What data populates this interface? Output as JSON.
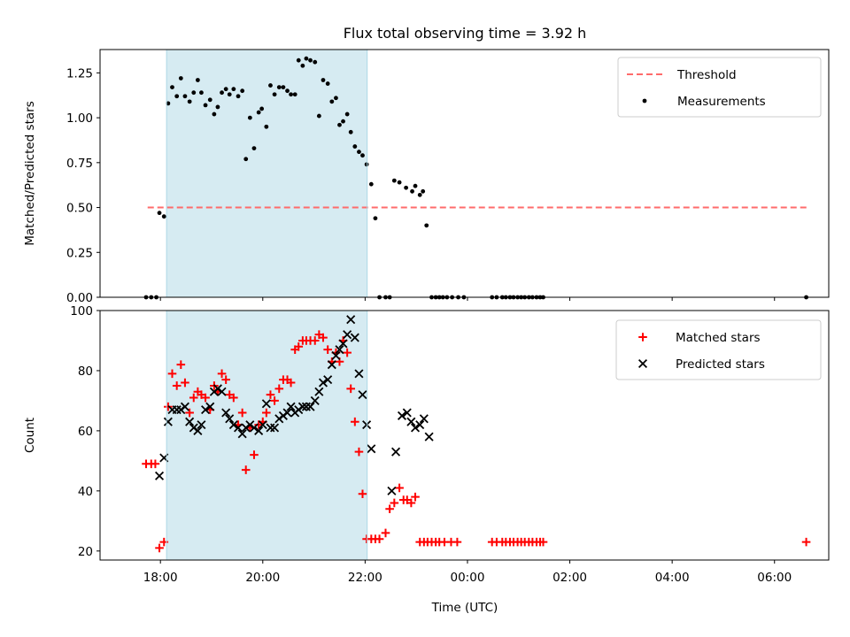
{
  "figure": {
    "title": "Flux total observing time = 3.92 h",
    "xlabel": "Time (UTC)",
    "x_tick_labels": [
      "18:00",
      "20:00",
      "22:00",
      "00:00",
      "02:00",
      "04:00",
      "06:00"
    ],
    "x_tick_hours": [
      18,
      20,
      22,
      24,
      26,
      28,
      30
    ],
    "x_range_hours": [
      16.82,
      31.06
    ],
    "shaded_interval_hours": [
      18.12,
      22.04
    ],
    "shade_color": "#add8e6"
  },
  "chart_data": [
    {
      "type": "scatter",
      "ylabel": "Matched/Predicted stars",
      "ylim": [
        0,
        1.38
      ],
      "y_ticks": [
        0.0,
        0.25,
        0.5,
        0.75,
        1.0,
        1.25
      ],
      "y_tick_labels": [
        "0.00",
        "0.25",
        "0.50",
        "0.75",
        "1.00",
        "1.25"
      ],
      "legend_position": "top-right",
      "threshold": {
        "name": "Threshold",
        "y": 0.5,
        "x_range": [
          17.75,
          30.65
        ],
        "color": "#ff6b6b",
        "style": "dashed"
      },
      "series": [
        {
          "name": "Measurements",
          "marker": "dot",
          "color": "#000000",
          "points": [
            [
              17.72,
              0
            ],
            [
              17.82,
              0
            ],
            [
              17.92,
              0
            ],
            [
              17.98,
              0.47
            ],
            [
              18.07,
              0.45
            ],
            [
              18.15,
              1.08
            ],
            [
              18.23,
              1.17
            ],
            [
              18.32,
              1.12
            ],
            [
              18.4,
              1.22
            ],
            [
              18.48,
              1.12
            ],
            [
              18.57,
              1.09
            ],
            [
              18.65,
              1.14
            ],
            [
              18.73,
              1.21
            ],
            [
              18.8,
              1.14
            ],
            [
              18.88,
              1.07
            ],
            [
              18.97,
              1.1
            ],
            [
              19.05,
              1.02
            ],
            [
              19.12,
              1.06
            ],
            [
              19.2,
              1.14
            ],
            [
              19.28,
              1.16
            ],
            [
              19.35,
              1.13
            ],
            [
              19.43,
              1.16
            ],
            [
              19.52,
              1.12
            ],
            [
              19.6,
              1.15
            ],
            [
              19.67,
              0.77
            ],
            [
              19.75,
              1.0
            ],
            [
              19.83,
              0.83
            ],
            [
              19.92,
              1.03
            ],
            [
              19.98,
              1.05
            ],
            [
              20.07,
              0.95
            ],
            [
              20.15,
              1.18
            ],
            [
              20.23,
              1.13
            ],
            [
              20.32,
              1.17
            ],
            [
              20.4,
              1.17
            ],
            [
              20.48,
              1.15
            ],
            [
              20.55,
              1.13
            ],
            [
              20.63,
              1.13
            ],
            [
              20.7,
              1.32
            ],
            [
              20.78,
              1.29
            ],
            [
              20.85,
              1.33
            ],
            [
              20.93,
              1.32
            ],
            [
              21.02,
              1.31
            ],
            [
              21.1,
              1.01
            ],
            [
              21.18,
              1.21
            ],
            [
              21.27,
              1.19
            ],
            [
              21.35,
              1.09
            ],
            [
              21.43,
              1.11
            ],
            [
              21.5,
              0.96
            ],
            [
              21.57,
              0.98
            ],
            [
              21.65,
              1.02
            ],
            [
              21.72,
              0.92
            ],
            [
              21.8,
              0.84
            ],
            [
              21.88,
              0.81
            ],
            [
              21.95,
              0.79
            ],
            [
              22.03,
              0.74
            ],
            [
              22.12,
              0.63
            ],
            [
              22.2,
              0.44
            ],
            [
              22.28,
              0
            ],
            [
              22.4,
              0
            ],
            [
              22.48,
              0
            ],
            [
              22.57,
              0.65
            ],
            [
              22.67,
              0.64
            ],
            [
              22.8,
              0.61
            ],
            [
              22.92,
              0.59
            ],
            [
              22.98,
              0.62
            ],
            [
              23.07,
              0.57
            ],
            [
              23.13,
              0.59
            ],
            [
              23.2,
              0.4
            ],
            [
              23.3,
              0
            ],
            [
              23.38,
              0
            ],
            [
              23.45,
              0
            ],
            [
              23.52,
              0
            ],
            [
              23.6,
              0
            ],
            [
              23.7,
              0
            ],
            [
              23.82,
              0
            ],
            [
              23.93,
              0
            ],
            [
              24.48,
              0
            ],
            [
              24.57,
              0
            ],
            [
              24.68,
              0
            ],
            [
              24.75,
              0
            ],
            [
              24.83,
              0
            ],
            [
              24.9,
              0
            ],
            [
              24.98,
              0
            ],
            [
              25.05,
              0
            ],
            [
              25.12,
              0
            ],
            [
              25.2,
              0
            ],
            [
              25.27,
              0
            ],
            [
              25.35,
              0
            ],
            [
              25.42,
              0
            ],
            [
              25.48,
              0
            ],
            [
              30.62,
              0
            ]
          ]
        }
      ]
    },
    {
      "type": "scatter",
      "ylabel": "Count",
      "ylim": [
        17,
        100
      ],
      "y_ticks": [
        20,
        40,
        60,
        80,
        100
      ],
      "y_tick_labels": [
        "20",
        "40",
        "60",
        "80",
        "100"
      ],
      "legend_position": "top-right",
      "series": [
        {
          "name": "Matched stars",
          "marker": "plus",
          "color": "#ff0000",
          "points": [
            [
              17.72,
              49
            ],
            [
              17.82,
              49
            ],
            [
              17.9,
              49
            ],
            [
              17.98,
              21
            ],
            [
              18.07,
              23
            ],
            [
              18.15,
              68
            ],
            [
              18.23,
              79
            ],
            [
              18.32,
              75
            ],
            [
              18.4,
              82
            ],
            [
              18.48,
              76
            ],
            [
              18.57,
              66
            ],
            [
              18.65,
              71
            ],
            [
              18.73,
              73
            ],
            [
              18.8,
              72
            ],
            [
              18.88,
              71
            ],
            [
              18.97,
              67
            ],
            [
              19.05,
              75
            ],
            [
              19.12,
              73
            ],
            [
              19.2,
              79
            ],
            [
              19.28,
              77
            ],
            [
              19.35,
              72
            ],
            [
              19.43,
              71
            ],
            [
              19.52,
              62
            ],
            [
              19.6,
              66
            ],
            [
              19.67,
              47
            ],
            [
              19.75,
              61
            ],
            [
              19.83,
              52
            ],
            [
              19.92,
              62
            ],
            [
              20.0,
              63
            ],
            [
              20.07,
              66
            ],
            [
              20.15,
              72
            ],
            [
              20.23,
              70
            ],
            [
              20.32,
              74
            ],
            [
              20.4,
              77
            ],
            [
              20.48,
              77
            ],
            [
              20.55,
              76
            ],
            [
              20.63,
              87
            ],
            [
              20.7,
              88
            ],
            [
              20.78,
              90
            ],
            [
              20.85,
              90
            ],
            [
              20.93,
              90
            ],
            [
              21.02,
              90
            ],
            [
              21.1,
              92
            ],
            [
              21.18,
              91
            ],
            [
              21.27,
              87
            ],
            [
              21.35,
              83
            ],
            [
              21.43,
              86
            ],
            [
              21.5,
              83
            ],
            [
              21.57,
              90
            ],
            [
              21.65,
              86
            ],
            [
              21.72,
              74
            ],
            [
              21.8,
              63
            ],
            [
              21.88,
              53
            ],
            [
              21.95,
              39
            ],
            [
              22.03,
              24
            ],
            [
              22.12,
              24
            ],
            [
              22.2,
              24
            ],
            [
              22.28,
              24
            ],
            [
              22.4,
              26
            ],
            [
              22.48,
              34
            ],
            [
              22.57,
              36
            ],
            [
              22.67,
              41
            ],
            [
              22.75,
              37
            ],
            [
              22.82,
              37
            ],
            [
              22.9,
              36
            ],
            [
              22.98,
              38
            ],
            [
              23.07,
              23
            ],
            [
              23.15,
              23
            ],
            [
              23.22,
              23
            ],
            [
              23.3,
              23
            ],
            [
              23.38,
              23
            ],
            [
              23.45,
              23
            ],
            [
              23.55,
              23
            ],
            [
              23.68,
              23
            ],
            [
              23.8,
              23
            ],
            [
              24.48,
              23
            ],
            [
              24.57,
              23
            ],
            [
              24.68,
              23
            ],
            [
              24.75,
              23
            ],
            [
              24.83,
              23
            ],
            [
              24.9,
              23
            ],
            [
              24.98,
              23
            ],
            [
              25.05,
              23
            ],
            [
              25.12,
              23
            ],
            [
              25.2,
              23
            ],
            [
              25.27,
              23
            ],
            [
              25.35,
              23
            ],
            [
              25.42,
              23
            ],
            [
              25.48,
              23
            ],
            [
              30.62,
              23
            ]
          ]
        },
        {
          "name": "Predicted stars",
          "marker": "x",
          "color": "#000000",
          "points": [
            [
              17.98,
              45
            ],
            [
              18.07,
              51
            ],
            [
              18.15,
              63
            ],
            [
              18.23,
              67
            ],
            [
              18.32,
              67
            ],
            [
              18.4,
              67
            ],
            [
              18.48,
              68
            ],
            [
              18.57,
              63
            ],
            [
              18.65,
              61
            ],
            [
              18.73,
              60
            ],
            [
              18.8,
              62
            ],
            [
              18.88,
              67
            ],
            [
              18.97,
              68
            ],
            [
              19.05,
              73
            ],
            [
              19.12,
              74
            ],
            [
              19.2,
              73
            ],
            [
              19.28,
              66
            ],
            [
              19.35,
              64
            ],
            [
              19.43,
              62
            ],
            [
              19.52,
              61
            ],
            [
              19.6,
              59
            ],
            [
              19.67,
              61
            ],
            [
              19.75,
              62
            ],
            [
              19.83,
              61
            ],
            [
              19.92,
              60
            ],
            [
              20.0,
              62
            ],
            [
              20.07,
              69
            ],
            [
              20.15,
              61
            ],
            [
              20.23,
              61
            ],
            [
              20.32,
              64
            ],
            [
              20.4,
              65
            ],
            [
              20.48,
              66
            ],
            [
              20.55,
              68
            ],
            [
              20.63,
              66
            ],
            [
              20.7,
              67
            ],
            [
              20.78,
              68
            ],
            [
              20.85,
              68
            ],
            [
              20.93,
              68
            ],
            [
              21.02,
              70
            ],
            [
              21.1,
              73
            ],
            [
              21.18,
              76
            ],
            [
              21.27,
              77
            ],
            [
              21.35,
              82
            ],
            [
              21.43,
              85
            ],
            [
              21.5,
              87
            ],
            [
              21.57,
              89
            ],
            [
              21.65,
              92
            ],
            [
              21.72,
              97
            ],
            [
              21.8,
              91
            ],
            [
              21.88,
              79
            ],
            [
              21.95,
              72
            ],
            [
              22.03,
              62
            ],
            [
              22.12,
              54
            ],
            [
              22.52,
              40
            ],
            [
              22.6,
              53
            ],
            [
              22.72,
              65
            ],
            [
              22.82,
              66
            ],
            [
              22.9,
              63
            ],
            [
              22.98,
              61
            ],
            [
              23.07,
              62
            ],
            [
              23.15,
              64
            ],
            [
              23.25,
              58
            ]
          ]
        }
      ]
    }
  ]
}
